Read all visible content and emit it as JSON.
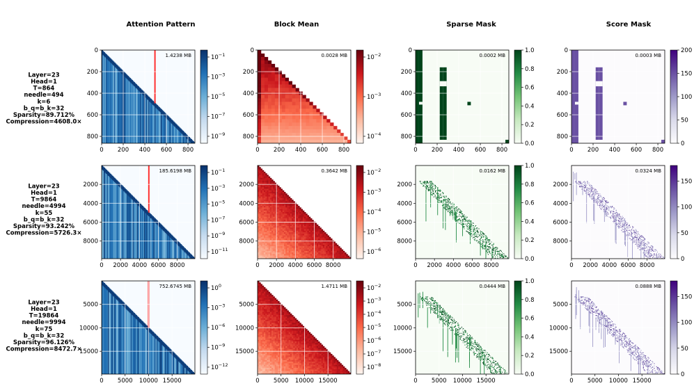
{
  "column_titles": [
    "Attention Pattern",
    "Block Mean",
    "Sparse Mask",
    "Score Mask"
  ],
  "colors": {
    "attention": [
      "#f7fbff",
      "#c6dbef",
      "#6baed6",
      "#2171b5",
      "#08306b"
    ],
    "block_mean": [
      "#fff5f0",
      "#fcbba1",
      "#fb6a4a",
      "#cb181d",
      "#67000d"
    ],
    "sparse": [
      "#f7fcf5",
      "#c7e9c0",
      "#74c476",
      "#238b45",
      "#00441b"
    ],
    "score": [
      "#fcfbfd",
      "#dadaeb",
      "#9e9ac8",
      "#6a51a3",
      "#3f007d"
    ],
    "needle_line": "#ff3030",
    "grid": "#ffffff"
  },
  "rows": [
    {
      "label_lines": [
        "Layer=23",
        "Head=1",
        "T=864",
        "needle=494",
        "k=6",
        "b_q=b_k=32",
        "Sparsity=89.712%",
        "Compression=4608.0×"
      ],
      "T": 864,
      "needle": 494,
      "memory": {
        "attention": "1.4238 MB",
        "block_mean": "0.0028 MB",
        "sparse": "0.0002 MB",
        "score": "0.0003 MB"
      },
      "axis_ticks": [
        0,
        200,
        400,
        600,
        800
      ],
      "xtick_labels": [
        "0",
        "200",
        "400",
        "600",
        "800"
      ],
      "ytick_labels": [
        "0",
        "200",
        "400",
        "600",
        "800"
      ],
      "attention_colorbar": [
        "10^-1",
        "10^-3",
        "10^-5",
        "10^-7",
        "10^-9"
      ],
      "block_colorbar": [
        "10^-2",
        "10^-3",
        "10^-4"
      ],
      "sparse_colorbar": [
        "1.0",
        "0.8",
        "0.6",
        "0.4",
        "0.2",
        "0.0"
      ],
      "score_colorbar": [
        "200",
        "150",
        "100",
        "50",
        "0"
      ],
      "score_max": 200
    },
    {
      "label_lines": [
        "Layer=23",
        "Head=1",
        "T=9864",
        "needle=4994",
        "k=55",
        "b_q=b_k=32",
        "Sparsity=93.242%",
        "Compression=5726.3×"
      ],
      "T": 9864,
      "needle": 4994,
      "memory": {
        "attention": "185.6198 MB",
        "block_mean": "0.3642 MB",
        "sparse": "0.0162 MB",
        "score": "0.0324 MB"
      },
      "axis_ticks": [
        0,
        2000,
        4000,
        6000,
        8000
      ],
      "xtick_labels": [
        "0",
        "2000",
        "4000",
        "6000",
        "8000"
      ],
      "yticks": [
        2000,
        4000,
        6000,
        8000
      ],
      "ytick_labels": [
        "2000",
        "4000",
        "6000",
        "8000"
      ],
      "attention_colorbar": [
        "10^-1",
        "10^-3",
        "10^-5",
        "10^-7",
        "10^-9",
        "10^-11"
      ],
      "block_colorbar": [
        "10^-2",
        "10^-3",
        "10^-4",
        "10^-5",
        "10^-6"
      ],
      "sparse_colorbar": [
        "1.0",
        "0.8",
        "0.6",
        "0.4",
        "0.2",
        "0.0"
      ],
      "score_colorbar": [
        "150",
        "100",
        "50",
        "0"
      ],
      "score_max": 180
    },
    {
      "label_lines": [
        "Layer=23",
        "Head=1",
        "T=19864",
        "needle=9994",
        "k=75",
        "b_q=b_k=32",
        "Sparsity=96.126%",
        "Compression=8472.7×"
      ],
      "T": 19864,
      "needle": 9994,
      "memory": {
        "attention": "752.6745 MB",
        "block_mean": "1.4711 MB",
        "sparse": "0.0444 MB",
        "score": "0.0888 MB"
      },
      "axis_ticks": [
        0,
        5000,
        10000,
        15000
      ],
      "xtick_labels": [
        "0",
        "5000",
        "10000",
        "15000"
      ],
      "yticks": [
        5000,
        10000,
        15000
      ],
      "ytick_labels": [
        "5000",
        "10000",
        "15000"
      ],
      "attention_colorbar": [
        "10^0",
        "10^-3",
        "10^-6",
        "10^-9",
        "10^-12"
      ],
      "block_colorbar": [
        "10^-2",
        "10^-3",
        "10^-4",
        "10^-5",
        "10^-6",
        "10^-7",
        "10^-8"
      ],
      "sparse_colorbar": [
        "1.0",
        "0.8",
        "0.6",
        "0.4",
        "0.2",
        "0.0"
      ],
      "score_colorbar": [
        "150",
        "100",
        "50",
        "0"
      ],
      "score_max": 180
    }
  ],
  "chart_data": [
    {
      "type": "heatmap",
      "title": "Attention Pattern",
      "rows": [
        "T=864",
        "T=9864",
        "T=19864"
      ],
      "description_values": {
        "needle_positions": [
          494,
          4994,
          9994
        ],
        "seq_lengths": [
          864,
          9864,
          19864
        ]
      },
      "scale": "log",
      "colorbar_ranges": [
        [
          1e-10,
          1
        ],
        [
          1e-12,
          1
        ],
        [
          1e-13,
          1
        ]
      ]
    },
    {
      "type": "heatmap",
      "title": "Block Mean",
      "scale": "log",
      "colorbar_ranges": [
        [
          1e-05,
          0.03
        ],
        [
          1e-06,
          0.03
        ],
        [
          1e-08,
          0.02
        ]
      ]
    },
    {
      "type": "heatmap",
      "title": "Sparse Mask",
      "scale": "linear",
      "colorbar_ranges": [
        [
          0,
          1
        ],
        [
          0,
          1
        ],
        [
          0,
          1
        ]
      ]
    },
    {
      "type": "heatmap",
      "title": "Score Mask",
      "scale": "linear",
      "colorbar_ranges": [
        [
          0,
          200
        ],
        [
          0,
          180
        ],
        [
          0,
          180
        ]
      ]
    }
  ]
}
